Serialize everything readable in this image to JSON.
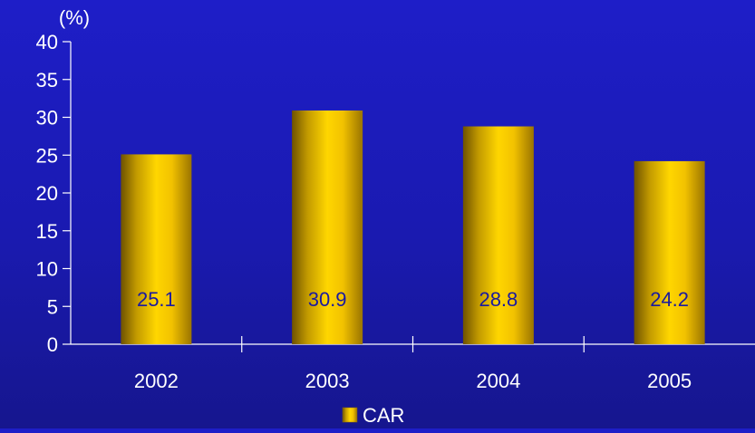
{
  "chart_data": {
    "type": "bar",
    "unit_label": "(%)",
    "categories": [
      "2002",
      "2003",
      "2004",
      "2005"
    ],
    "series": [
      {
        "name": "CAR",
        "values": [
          25.1,
          30.9,
          28.8,
          24.2
        ]
      }
    ],
    "data_labels": [
      "25.1",
      "30.9",
      "28.8",
      "24.2"
    ],
    "ylim": [
      0,
      40
    ],
    "yticks": [
      0,
      5,
      10,
      15,
      20,
      25,
      30,
      35,
      40
    ],
    "grid": false,
    "legend_position": "bottom-center",
    "colors": {
      "background": "#1c1cbf",
      "axis": "#ffffff",
      "text": "#ffffff",
      "data_label": "#1a1aa0",
      "bar_light": "#ffd200",
      "bar_dark": "#7a5a00"
    }
  }
}
